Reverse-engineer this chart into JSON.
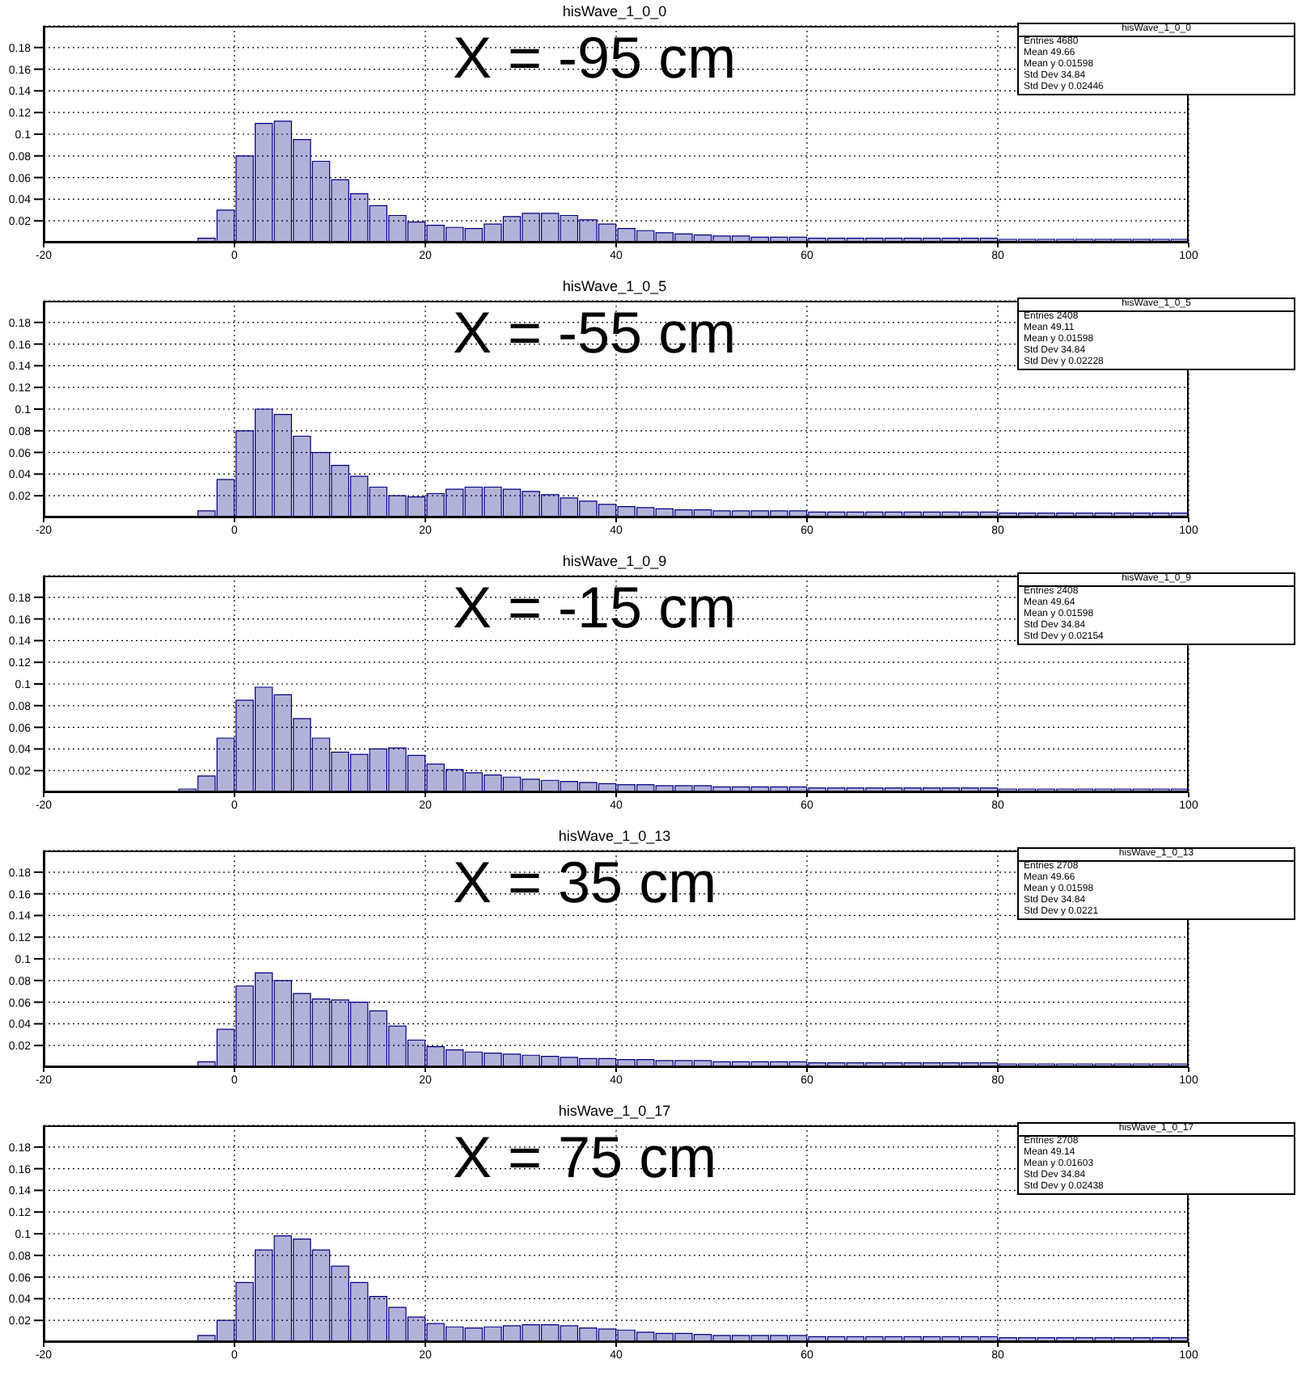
{
  "chart_data": [
    {
      "type": "histogram",
      "title": "hisWave_1_0_0",
      "color": "#000080",
      "xlim": [
        -20,
        100
      ],
      "xticks": [
        -20,
        0,
        20,
        40,
        60,
        80,
        100
      ],
      "ylim": [
        0,
        0.2
      ],
      "yticks": [
        0.02,
        0.04,
        0.06,
        0.08,
        0.1,
        0.12,
        0.14,
        0.16,
        0.18
      ],
      "grid": true,
      "bins": [
        -20,
        -18,
        -16,
        -14,
        -12,
        -10,
        -8,
        -6,
        -4,
        -2,
        0,
        2,
        4,
        6,
        8,
        10,
        12,
        14,
        16,
        18,
        20,
        22,
        24,
        26,
        28,
        30,
        32,
        34,
        36,
        38,
        40,
        42,
        44,
        46,
        48,
        50,
        52,
        54,
        56,
        58,
        60,
        62,
        64,
        66,
        68,
        70,
        72,
        74,
        76,
        78,
        80,
        82,
        84,
        86,
        88,
        90,
        92,
        94,
        96,
        98,
        100
      ],
      "values": [
        0.001,
        0.001,
        0.001,
        0.001,
        0.001,
        0.001,
        0.001,
        0.001,
        0.004,
        0.03,
        0.08,
        0.11,
        0.112,
        0.095,
        0.075,
        0.058,
        0.045,
        0.034,
        0.025,
        0.019,
        0.016,
        0.014,
        0.013,
        0.017,
        0.024,
        0.027,
        0.027,
        0.025,
        0.021,
        0.017,
        0.013,
        0.011,
        0.009,
        0.008,
        0.007,
        0.006,
        0.006,
        0.005,
        0.005,
        0.005,
        0.004,
        0.004,
        0.004,
        0.004,
        0.004,
        0.004,
        0.004,
        0.004,
        0.004,
        0.004,
        0.003,
        0.003,
        0.003,
        0.003,
        0.003,
        0.003,
        0.003,
        0.003,
        0.003,
        0.003
      ],
      "annotations": [
        "X = -95 cm",
        "hisWave_1_0_0",
        "Entries 4680",
        "Mean 49.66",
        "Mean y 0.01598",
        "Std Dev 34.84",
        "Std Dev y 0.02446"
      ]
    },
    {
      "type": "histogram",
      "title": "hisWave_1_0_5",
      "color": "#000080",
      "xlim": [
        -20,
        100
      ],
      "xticks": [
        -20,
        0,
        20,
        40,
        60,
        80,
        100
      ],
      "ylim": [
        0,
        0.2
      ],
      "yticks": [
        0.02,
        0.04,
        0.06,
        0.08,
        0.1,
        0.12,
        0.14,
        0.16,
        0.18
      ],
      "grid": true,
      "bins": [
        -20,
        -18,
        -16,
        -14,
        -12,
        -10,
        -8,
        -6,
        -4,
        -2,
        0,
        2,
        4,
        6,
        8,
        10,
        12,
        14,
        16,
        18,
        20,
        22,
        24,
        26,
        28,
        30,
        32,
        34,
        36,
        38,
        40,
        42,
        44,
        46,
        48,
        50,
        52,
        54,
        56,
        58,
        60,
        62,
        64,
        66,
        68,
        70,
        72,
        74,
        76,
        78,
        80,
        82,
        84,
        86,
        88,
        90,
        92,
        94,
        96,
        98,
        100
      ],
      "values": [
        0.001,
        0.001,
        0.001,
        0.001,
        0.001,
        0.001,
        0.001,
        0.001,
        0.006,
        0.035,
        0.08,
        0.1,
        0.095,
        0.075,
        0.06,
        0.048,
        0.038,
        0.028,
        0.02,
        0.019,
        0.022,
        0.026,
        0.028,
        0.028,
        0.026,
        0.024,
        0.021,
        0.018,
        0.015,
        0.012,
        0.01,
        0.009,
        0.008,
        0.007,
        0.007,
        0.006,
        0.006,
        0.006,
        0.006,
        0.006,
        0.005,
        0.005,
        0.005,
        0.005,
        0.005,
        0.005,
        0.005,
        0.005,
        0.005,
        0.005,
        0.004,
        0.004,
        0.004,
        0.004,
        0.004,
        0.004,
        0.004,
        0.004,
        0.004,
        0.004
      ],
      "annotations": [
        "X = -55 cm",
        "hisWave_1_0_5",
        "Entries 2408",
        "Mean 49.11",
        "Mean y 0.01598",
        "Std Dev 34.84",
        "Std Dev y 0.02228"
      ]
    },
    {
      "type": "histogram",
      "title": "hisWave_1_0_9",
      "color": "#000080",
      "xlim": [
        -20,
        100
      ],
      "xticks": [
        -20,
        0,
        20,
        40,
        60,
        80,
        100
      ],
      "ylim": [
        0,
        0.2
      ],
      "yticks": [
        0.02,
        0.04,
        0.06,
        0.08,
        0.1,
        0.12,
        0.14,
        0.16,
        0.18
      ],
      "grid": true,
      "bins": [
        -20,
        -18,
        -16,
        -14,
        -12,
        -10,
        -8,
        -6,
        -4,
        -2,
        0,
        2,
        4,
        6,
        8,
        10,
        12,
        14,
        16,
        18,
        20,
        22,
        24,
        26,
        28,
        30,
        32,
        34,
        36,
        38,
        40,
        42,
        44,
        46,
        48,
        50,
        52,
        54,
        56,
        58,
        60,
        62,
        64,
        66,
        68,
        70,
        72,
        74,
        76,
        78,
        80,
        82,
        84,
        86,
        88,
        90,
        92,
        94,
        96,
        98,
        100
      ],
      "values": [
        0.001,
        0.001,
        0.001,
        0.001,
        0.001,
        0.001,
        0.001,
        0.003,
        0.015,
        0.05,
        0.085,
        0.097,
        0.09,
        0.068,
        0.05,
        0.037,
        0.035,
        0.04,
        0.041,
        0.034,
        0.026,
        0.021,
        0.018,
        0.016,
        0.014,
        0.012,
        0.011,
        0.01,
        0.009,
        0.008,
        0.007,
        0.007,
        0.006,
        0.006,
        0.006,
        0.005,
        0.005,
        0.005,
        0.005,
        0.005,
        0.004,
        0.004,
        0.004,
        0.004,
        0.004,
        0.004,
        0.004,
        0.004,
        0.004,
        0.004,
        0.003,
        0.003,
        0.003,
        0.003,
        0.003,
        0.003,
        0.003,
        0.003,
        0.003,
        0.003
      ],
      "annotations": [
        "X = -15 cm",
        "hisWave_1_0_9",
        "Entries 2408",
        "Mean 49.64",
        "Mean y 0.01598",
        "Std Dev 34.84",
        "Std Dev y 0.02154"
      ]
    },
    {
      "type": "histogram",
      "title": "hisWave_1_0_13",
      "color": "#000080",
      "xlim": [
        -20,
        100
      ],
      "xticks": [
        -20,
        0,
        20,
        40,
        60,
        80,
        100
      ],
      "ylim": [
        0,
        0.2
      ],
      "yticks": [
        0.02,
        0.04,
        0.06,
        0.08,
        0.1,
        0.12,
        0.14,
        0.16,
        0.18
      ],
      "grid": true,
      "bins": [
        -20,
        -18,
        -16,
        -14,
        -12,
        -10,
        -8,
        -6,
        -4,
        -2,
        0,
        2,
        4,
        6,
        8,
        10,
        12,
        14,
        16,
        18,
        20,
        22,
        24,
        26,
        28,
        30,
        32,
        34,
        36,
        38,
        40,
        42,
        44,
        46,
        48,
        50,
        52,
        54,
        56,
        58,
        60,
        62,
        64,
        66,
        68,
        70,
        72,
        74,
        76,
        78,
        80,
        82,
        84,
        86,
        88,
        90,
        92,
        94,
        96,
        98,
        100
      ],
      "values": [
        0.001,
        0.001,
        0.001,
        0.001,
        0.001,
        0.001,
        0.001,
        0.001,
        0.005,
        0.035,
        0.075,
        0.087,
        0.08,
        0.068,
        0.063,
        0.062,
        0.06,
        0.052,
        0.038,
        0.025,
        0.019,
        0.016,
        0.014,
        0.013,
        0.012,
        0.011,
        0.01,
        0.009,
        0.008,
        0.008,
        0.007,
        0.007,
        0.006,
        0.006,
        0.006,
        0.005,
        0.005,
        0.005,
        0.005,
        0.005,
        0.004,
        0.004,
        0.004,
        0.004,
        0.004,
        0.004,
        0.004,
        0.004,
        0.004,
        0.004,
        0.003,
        0.003,
        0.003,
        0.003,
        0.003,
        0.003,
        0.003,
        0.003,
        0.003,
        0.003
      ],
      "annotations": [
        "X = 35 cm",
        "hisWave_1_0_13",
        "Entries 2708",
        "Mean 49.66",
        "Mean y 0.01598",
        "Std Dev 34.84",
        "Std Dev y 0.0221"
      ]
    },
    {
      "type": "histogram",
      "title": "hisWave_1_0_17",
      "color": "#000080",
      "xlim": [
        -20,
        100
      ],
      "xticks": [
        -20,
        0,
        20,
        40,
        60,
        80,
        100
      ],
      "ylim": [
        0,
        0.2
      ],
      "yticks": [
        0.02,
        0.04,
        0.06,
        0.08,
        0.1,
        0.12,
        0.14,
        0.16,
        0.18
      ],
      "grid": true,
      "bins": [
        -20,
        -18,
        -16,
        -14,
        -12,
        -10,
        -8,
        -6,
        -4,
        -2,
        0,
        2,
        4,
        6,
        8,
        10,
        12,
        14,
        16,
        18,
        20,
        22,
        24,
        26,
        28,
        30,
        32,
        34,
        36,
        38,
        40,
        42,
        44,
        46,
        48,
        50,
        52,
        54,
        56,
        58,
        60,
        62,
        64,
        66,
        68,
        70,
        72,
        74,
        76,
        78,
        80,
        82,
        84,
        86,
        88,
        90,
        92,
        94,
        96,
        98,
        100
      ],
      "values": [
        0.001,
        0.001,
        0.001,
        0.001,
        0.001,
        0.001,
        0.001,
        0.001,
        0.006,
        0.02,
        0.055,
        0.085,
        0.098,
        0.095,
        0.085,
        0.07,
        0.055,
        0.042,
        0.032,
        0.023,
        0.017,
        0.014,
        0.013,
        0.014,
        0.015,
        0.016,
        0.016,
        0.015,
        0.013,
        0.012,
        0.011,
        0.009,
        0.008,
        0.008,
        0.007,
        0.006,
        0.006,
        0.006,
        0.006,
        0.006,
        0.005,
        0.005,
        0.005,
        0.005,
        0.005,
        0.005,
        0.005,
        0.005,
        0.005,
        0.005,
        0.004,
        0.004,
        0.004,
        0.004,
        0.004,
        0.004,
        0.004,
        0.004,
        0.004,
        0.004
      ],
      "annotations": [
        "X = 75 cm",
        "hisWave_1_0_17",
        "Entries 2708",
        "Mean 49.14",
        "Mean y 0.01603",
        "Std Dev 34.84",
        "Std Dev y 0.02438"
      ]
    }
  ]
}
